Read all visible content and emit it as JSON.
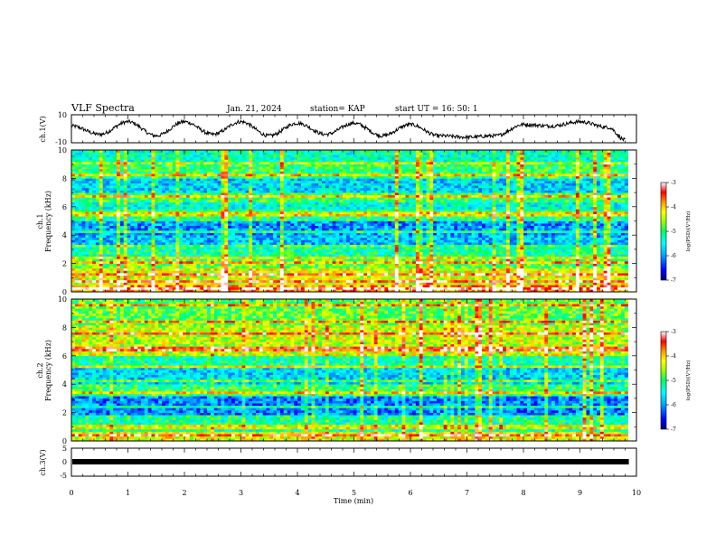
{
  "header": {
    "title": "VLF Spectra",
    "date": "Jan. 21, 2024",
    "station": "station= KAP",
    "start": "start  UT =   16: 50: 1"
  },
  "colors": {
    "colormap": [
      "#000080",
      "#0000ff",
      "#00a0ff",
      "#00ffff",
      "#00ff66",
      "#99ff00",
      "#ffff00",
      "#ff9900",
      "#ff0000",
      "#cc0000",
      "#ffffff"
    ]
  },
  "chart_data": [
    {
      "type": "line",
      "ylabel": "ch.1(V)",
      "ylim": [
        -10,
        10
      ],
      "yticks": [
        "10",
        "-10"
      ],
      "xlim": [
        0,
        10
      ],
      "x": [
        0,
        0.5,
        1,
        1.5,
        2,
        2.5,
        3,
        3.5,
        4,
        4.5,
        5,
        5.5,
        6,
        6.5,
        7,
        7.5,
        8,
        8.5,
        9,
        9.5,
        9.8
      ],
      "values": [
        2,
        -4,
        5,
        -5,
        5,
        -4,
        5,
        -5,
        4,
        -4,
        4,
        -5,
        3,
        -5,
        -6,
        -5,
        3,
        2,
        5,
        1,
        -8
      ]
    },
    {
      "type": "heatmap",
      "ylabel": "ch.1\nFrequency (kHz)",
      "ylim": [
        0,
        10
      ],
      "yticks": [
        "0",
        "2",
        "4",
        "6",
        "8",
        "10"
      ],
      "xlim": [
        0,
        9.85
      ],
      "colorbar": {
        "label": "log(PSD)(V²/Hz)",
        "range": [
          -7,
          -3
        ],
        "ticks": [
          "-3",
          "-4",
          "-5",
          "-6",
          "-7"
        ]
      },
      "bands": [
        {
          "from": 0,
          "to": 0.5,
          "level": -3.8
        },
        {
          "from": 0.5,
          "to": 1.6,
          "level": -4.3
        },
        {
          "from": 1.6,
          "to": 2.4,
          "level": -4.8
        },
        {
          "from": 2.4,
          "to": 3.2,
          "level": -5.2
        },
        {
          "from": 3.2,
          "to": 4.0,
          "level": -5.8
        },
        {
          "from": 4.0,
          "to": 5.0,
          "level": -6.0
        },
        {
          "from": 5.0,
          "to": 5.8,
          "level": -5.1
        },
        {
          "from": 5.8,
          "to": 6.4,
          "level": -5.4
        },
        {
          "from": 6.4,
          "to": 7.0,
          "level": -5.0
        },
        {
          "from": 7.0,
          "to": 8.0,
          "level": -5.7
        },
        {
          "from": 8.0,
          "to": 9.0,
          "level": -5.0
        },
        {
          "from": 9.0,
          "to": 10.0,
          "level": -5.3
        }
      ],
      "lines_khz": [
        0.3,
        0.8,
        1.2,
        2.1,
        2.4,
        3.3,
        4.2,
        5.5,
        6.7,
        8.2,
        9.1
      ]
    },
    {
      "type": "heatmap",
      "ylabel": "ch.2\nFrequency (kHz)",
      "ylim": [
        0,
        10
      ],
      "yticks": [
        "0",
        "2",
        "4",
        "6",
        "8",
        "10"
      ],
      "xlim": [
        0,
        9.85
      ],
      "colorbar": {
        "label": "log(PSD)(V²/Hz)",
        "range": [
          -7,
          -3
        ],
        "ticks": [
          "-3",
          "-4",
          "-5",
          "-6",
          "-7"
        ]
      },
      "bands": [
        {
          "from": 0,
          "to": 0.6,
          "level": -4.3
        },
        {
          "from": 0.6,
          "to": 1.8,
          "level": -5.2
        },
        {
          "from": 1.8,
          "to": 3.2,
          "level": -6.1
        },
        {
          "from": 3.2,
          "to": 4.0,
          "level": -5.0
        },
        {
          "from": 4.0,
          "to": 5.2,
          "level": -5.7
        },
        {
          "from": 5.2,
          "to": 6.2,
          "level": -5.2
        },
        {
          "from": 6.2,
          "to": 8.2,
          "level": -4.4
        },
        {
          "from": 8.2,
          "to": 10.0,
          "level": -4.8
        }
      ],
      "lines_khz": [
        0.4,
        1.0,
        2.4,
        3.4,
        4.3,
        5.3,
        6.1,
        6.5,
        7.6,
        8.4,
        9.6
      ]
    },
    {
      "type": "line",
      "ylabel": "ch.3(V)",
      "xlabel": "Time  (min)",
      "ylim": [
        -5,
        5
      ],
      "yticks": [
        "5",
        "0",
        "-5"
      ],
      "xlim": [
        0,
        10
      ],
      "xticks": [
        "0",
        "1",
        "2",
        "3",
        "4",
        "5",
        "6",
        "7",
        "8",
        "9",
        "10"
      ],
      "x": [
        0,
        9.85
      ],
      "values": [
        0,
        0
      ]
    }
  ]
}
